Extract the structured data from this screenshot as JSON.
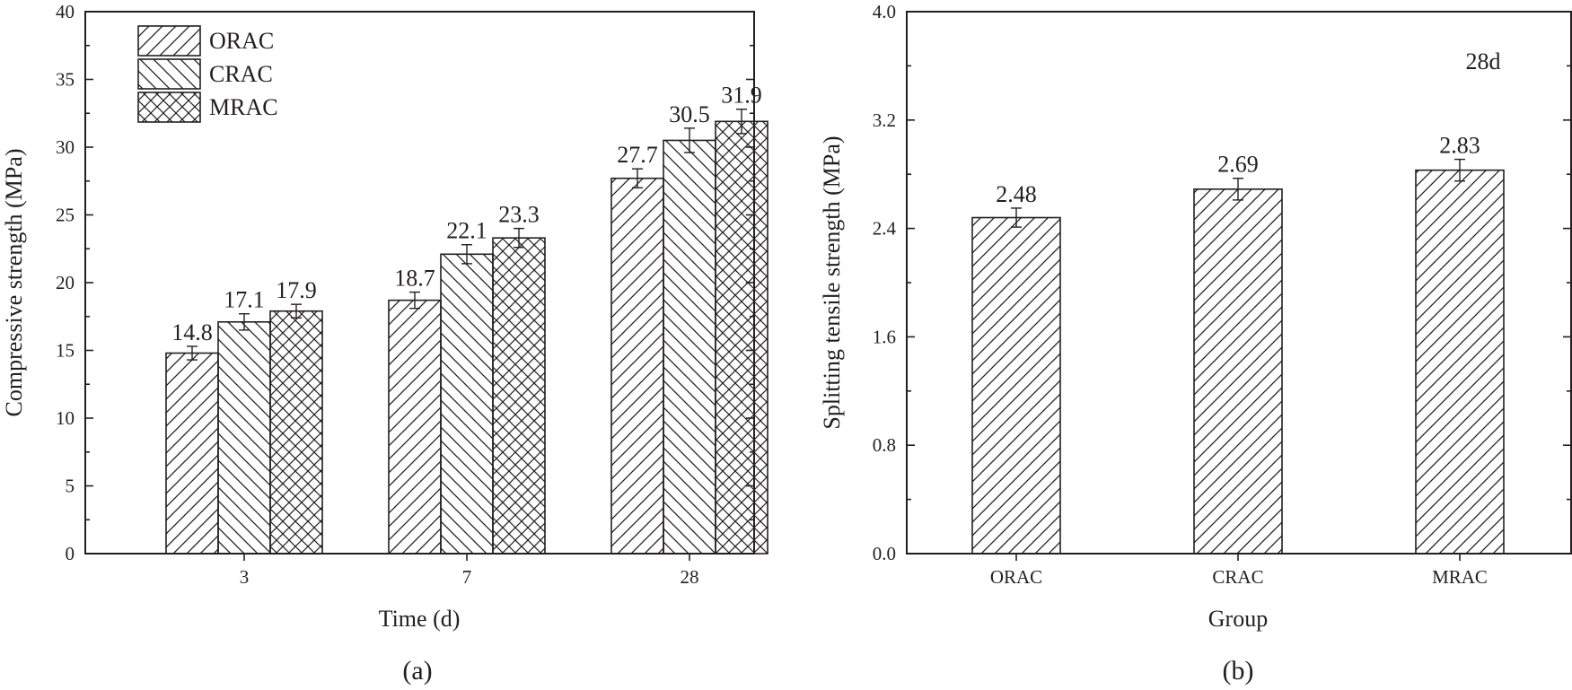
{
  "chart_data": [
    {
      "type": "bar",
      "panel_label": "(a)",
      "xlabel": "Time (d)",
      "ylabel": "Compressive strength (MPa)",
      "ylim": [
        0,
        40
      ],
      "y_ticks": [
        0,
        5,
        10,
        15,
        20,
        25,
        30,
        35,
        40
      ],
      "categories": [
        "3",
        "7",
        "28"
      ],
      "series": [
        {
          "name": "ORAC",
          "pattern": "diagonal-right",
          "values": [
            14.8,
            18.7,
            27.7
          ],
          "labels": [
            "14.8",
            "18.7",
            "27.7"
          ],
          "errors": [
            0.5,
            0.6,
            0.7
          ]
        },
        {
          "name": "CRAC",
          "pattern": "diagonal-left",
          "values": [
            17.1,
            22.1,
            30.5
          ],
          "labels": [
            "17.1",
            "22.1",
            "30.5"
          ],
          "errors": [
            0.6,
            0.7,
            0.9
          ]
        },
        {
          "name": "MRAC",
          "pattern": "crosshatch",
          "values": [
            17.9,
            23.3,
            31.9
          ],
          "labels": [
            "17.9",
            "23.3",
            "31.9"
          ],
          "errors": [
            0.5,
            0.7,
            0.9
          ]
        }
      ],
      "legend": {
        "position": "top-left"
      },
      "grid": false
    },
    {
      "type": "bar",
      "panel_label": "(b)",
      "xlabel": "Group",
      "ylabel": "Splitting tensile strength (MPa)",
      "ylim": [
        0,
        4
      ],
      "y_ticks": [
        "0.0",
        "0.8",
        "1.6",
        "2.4",
        "3.2",
        "4.0"
      ],
      "categories": [
        "ORAC",
        "CRAC",
        "MRAC"
      ],
      "values": [
        2.48,
        2.69,
        2.83
      ],
      "labels": [
        "2.48",
        "2.69",
        "2.83"
      ],
      "errors": [
        0.07,
        0.08,
        0.08
      ],
      "pattern": "diagonal-right",
      "annotation": "28d",
      "grid": false
    }
  ],
  "colors": {
    "ink": "#231f20",
    "fill": "#ffffff"
  }
}
